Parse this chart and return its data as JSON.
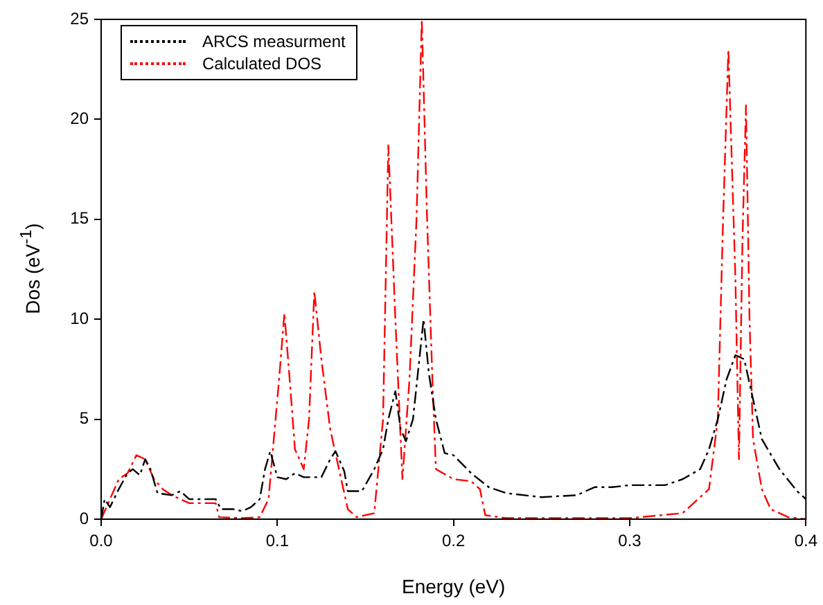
{
  "chart_data": {
    "type": "line",
    "xlabel": "Energy (eV)",
    "ylabel": "Dos (eV$^{-1}$)",
    "xlim": [
      0,
      0.4
    ],
    "xticks": [
      {
        "value": 0,
        "label": "0.0"
      },
      0.1,
      0.2,
      0.3,
      0.4
    ],
    "ylim": [
      0,
      25
    ],
    "yticks": [
      0,
      5,
      10,
      15,
      20,
      25
    ],
    "grid": false,
    "legend": "top left",
    "marker": "none",
    "line_style": "dashed",
    "series": [
      {
        "name": "ARCS measurment",
        "color": "#000000",
        "x": [
          0,
          0.002,
          0.005,
          0.01,
          0.015,
          0.018,
          0.022,
          0.025,
          0.028,
          0.032,
          0.04,
          0.045,
          0.05,
          0.055,
          0.06,
          0.065,
          0.068,
          0.075,
          0.08,
          0.085,
          0.09,
          0.093,
          0.096,
          0.1,
          0.105,
          0.11,
          0.115,
          0.12,
          0.125,
          0.13,
          0.133,
          0.138,
          0.14,
          0.148,
          0.155,
          0.16,
          0.163,
          0.167,
          0.17,
          0.173,
          0.177,
          0.18,
          0.183,
          0.186,
          0.19,
          0.195,
          0.2,
          0.21,
          0.22,
          0.23,
          0.25,
          0.27,
          0.28,
          0.29,
          0.3,
          0.32,
          0.33,
          0.34,
          0.345,
          0.35,
          0.355,
          0.36,
          0.365,
          0.37,
          0.375,
          0.385,
          0.395,
          0.4
        ],
        "values": [
          0,
          1.0,
          0.6,
          1.5,
          2.3,
          2.5,
          2.2,
          3.0,
          2.5,
          1.3,
          1.2,
          1.4,
          1.0,
          1.0,
          1.0,
          1.0,
          0.5,
          0.5,
          0.4,
          0.6,
          1.0,
          2.5,
          3.4,
          2.1,
          2.0,
          2.3,
          2.1,
          2.1,
          2.1,
          3.0,
          3.4,
          2.4,
          1.4,
          1.4,
          2.5,
          3.5,
          5.0,
          6.4,
          4.5,
          3.9,
          5.0,
          7.5,
          10.0,
          7.3,
          5.0,
          3.3,
          3.2,
          2.3,
          1.6,
          1.3,
          1.1,
          1.2,
          1.6,
          1.6,
          1.7,
          1.7,
          2.0,
          2.5,
          3.5,
          5.0,
          7.0,
          8.2,
          8.0,
          6.0,
          4.0,
          2.5,
          1.4,
          1.0
        ]
      },
      {
        "name": "Calculated DOS",
        "color": "#ff0000",
        "x": [
          0,
          0.005,
          0.01,
          0.015,
          0.02,
          0.025,
          0.03,
          0.035,
          0.04,
          0.05,
          0.06,
          0.065,
          0.067,
          0.08,
          0.09,
          0.095,
          0.098,
          0.101,
          0.104,
          0.107,
          0.11,
          0.115,
          0.118,
          0.121,
          0.125,
          0.13,
          0.135,
          0.14,
          0.145,
          0.155,
          0.16,
          0.163,
          0.167,
          0.171,
          0.175,
          0.179,
          0.182,
          0.185,
          0.188,
          0.19,
          0.2,
          0.21,
          0.215,
          0.218,
          0.23,
          0.3,
          0.33,
          0.345,
          0.35,
          0.353,
          0.356,
          0.36,
          0.362,
          0.364,
          0.366,
          0.368,
          0.37,
          0.375,
          0.38,
          0.39,
          0.4
        ],
        "values": [
          0,
          1.0,
          2.0,
          2.3,
          3.2,
          3.0,
          2.0,
          1.5,
          1.2,
          0.8,
          0.8,
          0.8,
          0.1,
          0.05,
          0.1,
          1.0,
          4.0,
          7.0,
          10.3,
          7.0,
          3.5,
          2.5,
          5.0,
          11.4,
          8.0,
          4.5,
          2.5,
          0.5,
          0.1,
          0.3,
          5.0,
          18.7,
          10.0,
          2.0,
          7.0,
          15,
          25,
          15,
          7,
          2.5,
          2.0,
          1.9,
          1.5,
          0.2,
          0.05,
          0.05,
          0.3,
          1.5,
          5,
          15,
          23.5,
          12,
          3,
          14,
          20.7,
          10,
          4,
          1.5,
          0.5,
          0.1,
          0
        ]
      }
    ]
  }
}
